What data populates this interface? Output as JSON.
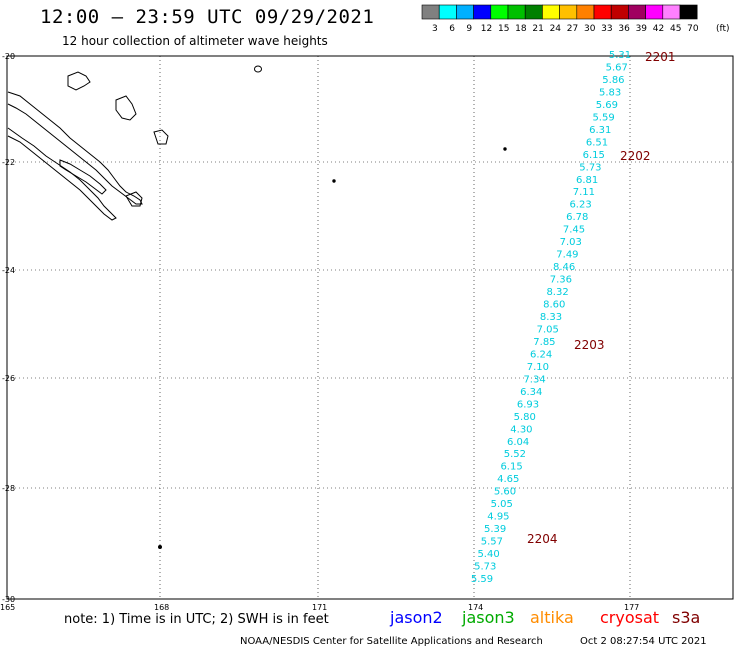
{
  "header": {
    "title": "12:00 – 23:59 UTC 09/29/2021",
    "subtitle": "12 hour collection of altimeter wave heights"
  },
  "legend": {
    "unit": "(ft)",
    "colors": [
      "#808080",
      "#00ffff",
      "#00b0ff",
      "#0000ff",
      "#00ff00",
      "#00c000",
      "#008000",
      "#ffff00",
      "#ffc000",
      "#ff8000",
      "#ff0000",
      "#c00000",
      "#a00060",
      "#ff00ff",
      "#ff80ff",
      "#000000"
    ],
    "labels": [
      "3",
      "6",
      "9",
      "12",
      "15",
      "18",
      "21",
      "24",
      "27",
      "30",
      "33",
      "36",
      "39",
      "42",
      "45",
      "70"
    ]
  },
  "axes": {
    "lat_ticks": [
      "-20",
      "-22",
      "-24",
      "-26",
      "-28",
      "-30"
    ],
    "lon_ticks": [
      "165",
      "168",
      "171",
      "174",
      "177"
    ]
  },
  "track": {
    "color": "#00ccdd",
    "values": [
      "5.31",
      "5.67",
      "5.86",
      "5.83",
      "5.69",
      "5.59",
      "6.31",
      "6.51",
      "6.15",
      "5.73",
      "6.81",
      "7.11",
      "6.23",
      "6.78",
      "7.45",
      "7.03",
      "7.49",
      "8.46",
      "7.36",
      "8.32",
      "8.60",
      "8.33",
      "7.05",
      "7.85",
      "6.24",
      "7.10",
      "7.34",
      "6.34",
      "6.93",
      "5.80",
      "4.30",
      "6.04",
      "5.52",
      "6.15",
      "4.65",
      "5.60",
      "5.05",
      "4.95",
      "5.39",
      "5.57",
      "5.40",
      "5.73",
      "5.59"
    ]
  },
  "times": {
    "color": "#800000",
    "labels": [
      "2201",
      "2202",
      "2203",
      "2204"
    ]
  },
  "footer": {
    "note": "note:  1) Time is in UTC;  2) SWH is in feet",
    "satellites": [
      {
        "name": "jason2",
        "color": "#0000ff"
      },
      {
        "name": "jason3",
        "color": "#00aa00"
      },
      {
        "name": "altika",
        "color": "#ff8c00"
      },
      {
        "name": "cryosat",
        "color": "#ff0000"
      },
      {
        "name": "s3a",
        "color": "#800000"
      }
    ],
    "credit": "NOAA/NESDIS Center for Satellite Applications and Research",
    "timestamp": "Oct  2 08:27:54 UTC 2021"
  }
}
